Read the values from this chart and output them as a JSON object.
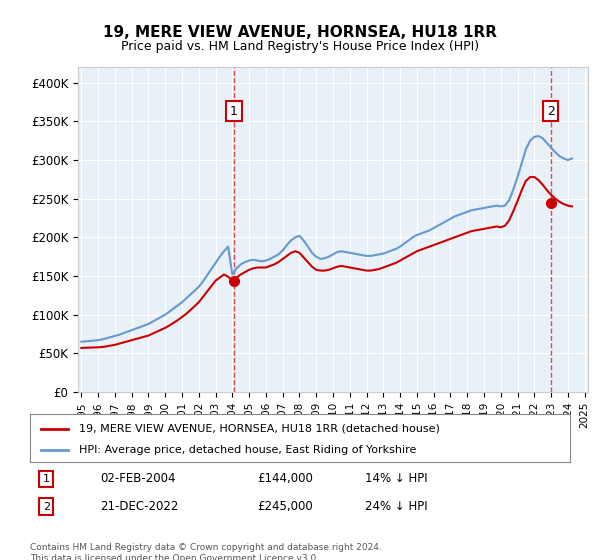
{
  "title": "19, MERE VIEW AVENUE, HORNSEA, HU18 1RR",
  "subtitle": "Price paid vs. HM Land Registry's House Price Index (HPI)",
  "legend_line1": "19, MERE VIEW AVENUE, HORNSEA, HU18 1RR (detached house)",
  "legend_line2": "HPI: Average price, detached house, East Riding of Yorkshire",
  "footnote": "Contains HM Land Registry data © Crown copyright and database right 2024.\nThis data is licensed under the Open Government Licence v3.0.",
  "transaction1_label": "1",
  "transaction1_date": "02-FEB-2004",
  "transaction1_price": "£144,000",
  "transaction1_hpi": "14% ↓ HPI",
  "transaction1_year": 2004.09,
  "transaction1_value": 144000,
  "transaction2_label": "2",
  "transaction2_date": "21-DEC-2022",
  "transaction2_price": "£245,000",
  "transaction2_hpi": "24% ↓ HPI",
  "transaction2_year": 2022.97,
  "transaction2_value": 245000,
  "ylim": [
    0,
    420000
  ],
  "yticks": [
    0,
    50000,
    100000,
    150000,
    200000,
    250000,
    300000,
    350000,
    400000
  ],
  "ytick_labels": [
    "£0",
    "£50K",
    "£100K",
    "£150K",
    "£200K",
    "£250K",
    "£300K",
    "£350K",
    "£400K"
  ],
  "bg_color": "#e8f0f8",
  "plot_bg": "#e8f0f8",
  "red_color": "#cc0000",
  "blue_color": "#6699cc",
  "hpi_x": [
    1995.0,
    1995.25,
    1995.5,
    1995.75,
    1996.0,
    1996.25,
    1996.5,
    1996.75,
    1997.0,
    1997.25,
    1997.5,
    1997.75,
    1998.0,
    1998.25,
    1998.5,
    1998.75,
    1999.0,
    1999.25,
    1999.5,
    1999.75,
    2000.0,
    2000.25,
    2000.5,
    2000.75,
    2001.0,
    2001.25,
    2001.5,
    2001.75,
    2002.0,
    2002.25,
    2002.5,
    2002.75,
    2003.0,
    2003.25,
    2003.5,
    2003.75,
    2004.0,
    2004.25,
    2004.5,
    2004.75,
    2005.0,
    2005.25,
    2005.5,
    2005.75,
    2006.0,
    2006.25,
    2006.5,
    2006.75,
    2007.0,
    2007.25,
    2007.5,
    2007.75,
    2008.0,
    2008.25,
    2008.5,
    2008.75,
    2009.0,
    2009.25,
    2009.5,
    2009.75,
    2010.0,
    2010.25,
    2010.5,
    2010.75,
    2011.0,
    2011.25,
    2011.5,
    2011.75,
    2012.0,
    2012.25,
    2012.5,
    2012.75,
    2013.0,
    2013.25,
    2013.5,
    2013.75,
    2014.0,
    2014.25,
    2014.5,
    2014.75,
    2015.0,
    2015.25,
    2015.5,
    2015.75,
    2016.0,
    2016.25,
    2016.5,
    2016.75,
    2017.0,
    2017.25,
    2017.5,
    2017.75,
    2018.0,
    2018.25,
    2018.5,
    2018.75,
    2019.0,
    2019.25,
    2019.5,
    2019.75,
    2020.0,
    2020.25,
    2020.5,
    2020.75,
    2021.0,
    2021.25,
    2021.5,
    2021.75,
    2022.0,
    2022.25,
    2022.5,
    2022.75,
    2023.0,
    2023.25,
    2023.5,
    2023.75,
    2024.0,
    2024.25
  ],
  "hpi_y": [
    65000,
    65500,
    66000,
    66500,
    67000,
    68000,
    69500,
    71000,
    72500,
    74000,
    76000,
    78000,
    80000,
    82000,
    84000,
    86000,
    88000,
    91000,
    94000,
    97000,
    100000,
    104000,
    108000,
    112000,
    116000,
    121000,
    126000,
    131000,
    136000,
    143000,
    151000,
    159000,
    167000,
    175000,
    182000,
    188000,
    152000,
    160000,
    165000,
    168000,
    170000,
    171000,
    170000,
    169000,
    170000,
    172000,
    175000,
    178000,
    183000,
    190000,
    196000,
    200000,
    202000,
    196000,
    188000,
    180000,
    175000,
    172000,
    173000,
    175000,
    178000,
    181000,
    182000,
    181000,
    180000,
    179000,
    178000,
    177000,
    176000,
    176000,
    177000,
    178000,
    179000,
    181000,
    183000,
    185000,
    188000,
    192000,
    196000,
    200000,
    203000,
    205000,
    207000,
    209000,
    212000,
    215000,
    218000,
    221000,
    224000,
    227000,
    229000,
    231000,
    233000,
    235000,
    236000,
    237000,
    238000,
    239000,
    240000,
    241000,
    240000,
    241000,
    248000,
    262000,
    278000,
    296000,
    314000,
    325000,
    330000,
    331000,
    328000,
    322000,
    316000,
    310000,
    305000,
    302000,
    300000,
    302000
  ],
  "price_x": [
    1995.0,
    1995.25,
    1995.5,
    1995.75,
    1996.0,
    1996.25,
    1996.5,
    1996.75,
    1997.0,
    1997.25,
    1997.5,
    1997.75,
    1998.0,
    1998.25,
    1998.5,
    1998.75,
    1999.0,
    1999.25,
    1999.5,
    1999.75,
    2000.0,
    2000.25,
    2000.5,
    2000.75,
    2001.0,
    2001.25,
    2001.5,
    2001.75,
    2002.0,
    2002.25,
    2002.5,
    2002.75,
    2003.0,
    2003.25,
    2003.5,
    2003.75,
    2004.0,
    2004.25,
    2004.5,
    2004.75,
    2005.0,
    2005.25,
    2005.5,
    2005.75,
    2006.0,
    2006.25,
    2006.5,
    2006.75,
    2007.0,
    2007.25,
    2007.5,
    2007.75,
    2008.0,
    2008.25,
    2008.5,
    2008.75,
    2009.0,
    2009.25,
    2009.5,
    2009.75,
    2010.0,
    2010.25,
    2010.5,
    2010.75,
    2011.0,
    2011.25,
    2011.5,
    2011.75,
    2012.0,
    2012.25,
    2012.5,
    2012.75,
    2013.0,
    2013.25,
    2013.5,
    2013.75,
    2014.0,
    2014.25,
    2014.5,
    2014.75,
    2015.0,
    2015.25,
    2015.5,
    2015.75,
    2016.0,
    2016.25,
    2016.5,
    2016.75,
    2017.0,
    2017.25,
    2017.5,
    2017.75,
    2018.0,
    2018.25,
    2018.5,
    2018.75,
    2019.0,
    2019.25,
    2019.5,
    2019.75,
    2020.0,
    2020.25,
    2020.5,
    2020.75,
    2021.0,
    2021.25,
    2021.5,
    2021.75,
    2022.0,
    2022.25,
    2022.5,
    2022.75,
    2023.0,
    2023.25,
    2023.5,
    2023.75,
    2024.0,
    2024.25
  ],
  "price_y": [
    57000,
    57200,
    57400,
    57600,
    57800,
    58200,
    59000,
    60000,
    61000,
    62500,
    64000,
    65500,
    67000,
    68500,
    70000,
    71500,
    73000,
    75500,
    78000,
    80500,
    83000,
    86000,
    89500,
    93000,
    97000,
    101000,
    106000,
    111000,
    116000,
    123000,
    130000,
    137000,
    144000,
    148000,
    152000,
    149000,
    144000,
    148000,
    152000,
    155000,
    158000,
    160000,
    161000,
    161000,
    161000,
    163000,
    165000,
    168000,
    172000,
    176000,
    180000,
    182000,
    180000,
    174000,
    168000,
    162000,
    158000,
    157000,
    157000,
    158000,
    160000,
    162000,
    163000,
    162000,
    161000,
    160000,
    159000,
    158000,
    157000,
    157000,
    158000,
    159000,
    161000,
    163000,
    165000,
    167000,
    170000,
    173000,
    176000,
    179000,
    182000,
    184000,
    186000,
    188000,
    190000,
    192000,
    194000,
    196000,
    198000,
    200000,
    202000,
    204000,
    206000,
    208000,
    209000,
    210000,
    211000,
    212000,
    213000,
    214000,
    213000,
    215000,
    222000,
    234000,
    247000,
    261000,
    273000,
    278000,
    278000,
    274000,
    268000,
    261000,
    255000,
    250000,
    246000,
    243000,
    241000,
    240000
  ]
}
